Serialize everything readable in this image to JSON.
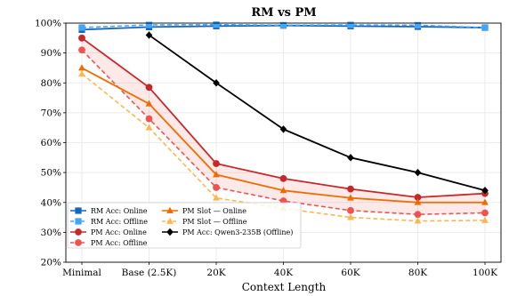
{
  "chart_data": {
    "type": "line",
    "title": "RM vs PM",
    "xlabel": "Context Length",
    "ylabel": "",
    "categories": [
      "Minimal",
      "Base (2.5K)",
      "20K",
      "40K",
      "60K",
      "80K",
      "100K"
    ],
    "ylim": [
      20,
      100
    ],
    "yticks": [
      "20%",
      "30%",
      "40%",
      "50%",
      "60%",
      "70%",
      "80%",
      "90%",
      "100%"
    ],
    "grid": true,
    "legend_position": "bottom-left",
    "series": [
      {
        "name": "RM Acc: Online",
        "color": "#1565c0",
        "dash": "solid",
        "marker": "square",
        "values": [
          97.8,
          98.7,
          99.0,
          99.2,
          99.0,
          98.8,
          98.5
        ]
      },
      {
        "name": "RM Acc: Offline",
        "color": "#42a5f5",
        "dash": "dashed",
        "marker": "square",
        "values": [
          98.5,
          99.4,
          99.5,
          99.3,
          99.4,
          99.3,
          98.5
        ]
      },
      {
        "name": "PM Acc: Online",
        "color": "#c62828",
        "dash": "solid",
        "marker": "circle",
        "values": [
          95.0,
          78.5,
          53.0,
          48.0,
          44.5,
          41.7,
          43.0
        ]
      },
      {
        "name": "PM Acc: Offline",
        "color": "#ef5350",
        "dash": "dashed",
        "marker": "circle",
        "values": [
          91.0,
          68.0,
          45.0,
          40.5,
          37.3,
          36.0,
          36.5
        ]
      },
      {
        "name": "PM Slot — Online",
        "color": "#ef6c00",
        "dash": "solid",
        "marker": "triangle",
        "values": [
          85.0,
          73.0,
          49.3,
          44.0,
          41.5,
          40.0,
          40.0
        ]
      },
      {
        "name": "PM Slot — Offline",
        "color": "#ffb74d",
        "dash": "dashed",
        "marker": "triangle",
        "values": [
          83.0,
          65.0,
          41.5,
          38.0,
          35.0,
          33.8,
          34.0
        ]
      },
      {
        "name": "PM Acc: Qwen3-235B (Offline)",
        "color": "#000000",
        "dash": "solid",
        "marker": "diamond",
        "values": [
          null,
          96.0,
          80.0,
          64.5,
          55.0,
          50.0,
          44.0
        ]
      }
    ],
    "shaded_region": {
      "between": [
        "PM Acc: Online",
        "PM Acc: Offline"
      ],
      "color": "#ef5350"
    }
  }
}
